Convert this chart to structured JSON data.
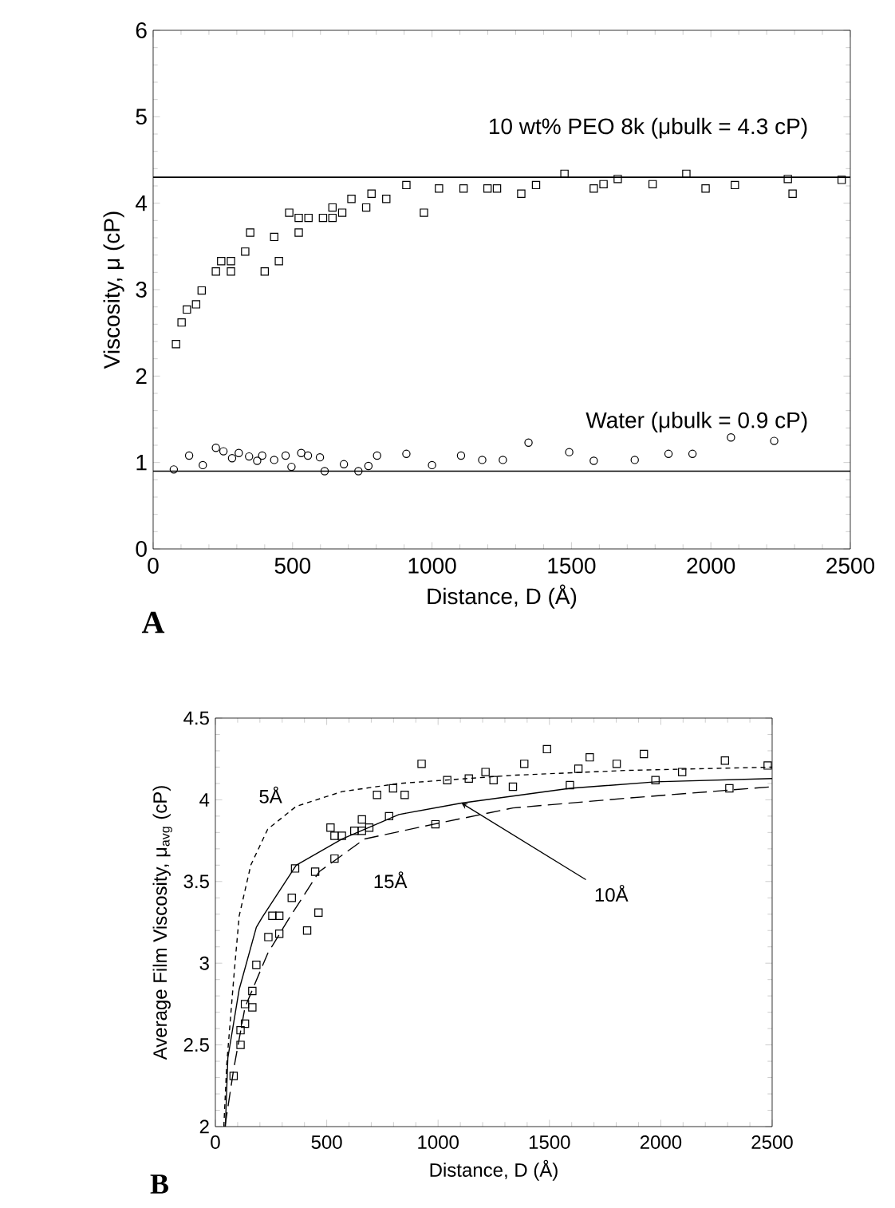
{
  "chart_data": [
    {
      "type": "scatter",
      "xlabel": "Distance, D (Å)",
      "ylabel": "Viscosity, μ (cP)",
      "xlim": [
        0,
        2500
      ],
      "ylim": [
        0,
        6
      ],
      "xticks": [
        0,
        500,
        1000,
        1500,
        2000,
        2500
      ],
      "yticks": [
        0,
        1,
        2,
        3,
        4,
        5,
        6
      ],
      "grid": false,
      "ref_lines": [
        {
          "axis": "y",
          "value": 4.3,
          "label": "10 wt% PEO 8k (μbulk = 4.3 cP)",
          "color": "#000000",
          "line_style": "solid"
        },
        {
          "axis": "y",
          "value": 0.9,
          "label": "Water (μbulk = 0.9 cP)",
          "color": "#000000",
          "line_style": "solid"
        }
      ],
      "annotations": [
        "A"
      ],
      "series": [
        {
          "color": "#000000",
          "marker": "square",
          "x": [
            82,
            102,
            121,
            154,
            174,
            225,
            244,
            279,
            279,
            330,
            348,
            400,
            434,
            451,
            488,
            522,
            522,
            557,
            609,
            643,
            643,
            678,
            711,
            764,
            783,
            836,
            908,
            971,
            1025,
            1113,
            1199,
            1233,
            1320,
            1373,
            1475,
            1580,
            1615,
            1666,
            1791,
            1912,
            1981,
            2086,
            2276,
            2293,
            2469
          ],
          "values": [
            2.37,
            2.62,
            2.77,
            2.83,
            2.99,
            3.21,
            3.33,
            3.21,
            3.33,
            3.44,
            3.66,
            3.21,
            3.61,
            3.33,
            3.89,
            3.66,
            3.83,
            3.83,
            3.83,
            3.83,
            3.95,
            3.89,
            4.05,
            3.95,
            4.11,
            4.05,
            4.21,
            3.89,
            4.17,
            4.17,
            4.17,
            4.17,
            4.11,
            4.21,
            4.34,
            4.17,
            4.22,
            4.28,
            4.22,
            4.34,
            4.17,
            4.21,
            4.28,
            4.11,
            4.27
          ]
        },
        {
          "color": "#000000",
          "marker": "circle",
          "x": [
            74,
            129,
            178,
            225,
            252,
            283,
            307,
            344,
            373,
            391,
            434,
            475,
            496,
            531,
            555,
            598,
            615,
            684,
            736,
            772,
            803,
            908,
            1000,
            1104,
            1180,
            1254,
            1346,
            1492,
            1580,
            1727,
            1848,
            1934,
            2072,
            2227
          ],
          "values": [
            0.92,
            1.08,
            0.97,
            1.17,
            1.13,
            1.05,
            1.11,
            1.07,
            1.02,
            1.08,
            1.03,
            1.08,
            0.95,
            1.11,
            1.08,
            1.06,
            0.9,
            0.98,
            0.9,
            0.96,
            1.08,
            1.1,
            0.97,
            1.08,
            1.03,
            1.03,
            1.23,
            1.12,
            1.02,
            1.03,
            1.1,
            1.1,
            1.29,
            1.25
          ]
        }
      ]
    },
    {
      "type": "scatter",
      "xlabel": "Distance, D (Å)",
      "ylabel": "Average Film Viscosity, μ$_{avg}$ (cP)",
      "xlim": [
        0,
        2500
      ],
      "ylim": [
        2,
        4.5
      ],
      "xticks": [
        0,
        500,
        1000,
        1500,
        2000,
        2500
      ],
      "yticks": [
        2,
        2.5,
        3,
        3.5,
        4,
        4.5
      ],
      "grid": false,
      "annotations": [
        "5Å",
        "15Å",
        {
          "text": "10Å",
          "x": 1105,
          "y": 3.98
        },
        "B"
      ],
      "series": [
        {
          "color": "#000000",
          "marker": "square",
          "x": [
            82,
            113,
            113,
            133,
            133,
            166,
            166,
            184,
            238,
            256,
            287,
            287,
            343,
            358,
            412,
            448,
            463,
            517,
            535,
            535,
            568,
            624,
            658,
            658,
            691,
            726,
            780,
            798,
            850,
            926,
            988,
            1041,
            1138,
            1213,
            1249,
            1336,
            1387,
            1489,
            1592,
            1630,
            1681,
            1802,
            1924,
            1976,
            2096,
            2288,
            2308,
            2480
          ],
          "values": [
            2.31,
            2.5,
            2.59,
            2.63,
            2.75,
            2.73,
            2.83,
            2.99,
            3.16,
            3.29,
            3.29,
            3.18,
            3.4,
            3.58,
            3.2,
            3.56,
            3.31,
            3.83,
            3.64,
            3.78,
            3.78,
            3.81,
            3.81,
            3.88,
            3.83,
            4.03,
            3.9,
            4.07,
            4.03,
            4.22,
            3.85,
            4.12,
            4.13,
            4.17,
            4.12,
            4.08,
            4.22,
            4.31,
            4.09,
            4.19,
            4.26,
            4.22,
            4.28,
            4.12,
            4.17,
            4.24,
            4.07,
            4.21
          ]
        },
        {
          "type": "line",
          "color": "#000000",
          "line_style": "dotted",
          "x": [
            38,
            51,
            70,
            85,
            107,
            159,
            235,
            363,
            568,
            824,
            1336,
            1848,
            2500
          ],
          "values": [
            2.0,
            2.38,
            2.7,
            2.95,
            3.29,
            3.6,
            3.82,
            3.96,
            4.05,
            4.1,
            4.15,
            4.18,
            4.2
          ]
        },
        {
          "type": "line",
          "color": "#000000",
          "line_style": "solid",
          "x": [
            45,
            56,
            107,
            184,
            210,
            363,
            568,
            824,
            1105,
            1592,
            1976,
            2500
          ],
          "values": [
            2.0,
            2.42,
            2.84,
            3.22,
            3.28,
            3.6,
            3.76,
            3.91,
            3.98,
            4.07,
            4.11,
            4.13
          ]
        },
        {
          "type": "line",
          "color": "#000000",
          "line_style": "dashed",
          "x": [
            43,
            82,
            133,
            235,
            338,
            466,
            670,
            978,
            1336,
            1848,
            2500
          ],
          "values": [
            2.0,
            2.35,
            2.73,
            3.06,
            3.29,
            3.56,
            3.76,
            3.85,
            3.95,
            4.01,
            4.08
          ]
        }
      ]
    }
  ]
}
